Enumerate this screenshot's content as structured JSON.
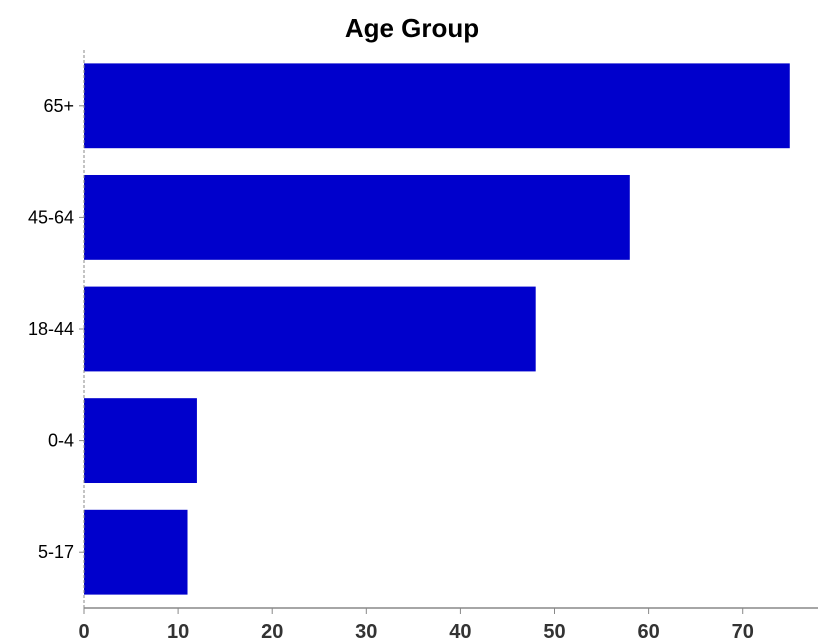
{
  "chart_data": {
    "type": "bar",
    "orientation": "horizontal",
    "title": "Age Group",
    "xlabel": "",
    "ylabel": "",
    "categories": [
      "65+",
      "45-64",
      "18-44",
      "0-4",
      "5-17"
    ],
    "values": [
      75,
      58,
      48,
      12,
      11
    ],
    "xlim": [
      0,
      78
    ],
    "x_ticks": [
      "0",
      "10",
      "20",
      "30",
      "40",
      "50",
      "60",
      "70"
    ],
    "grid": false,
    "legend": "none"
  },
  "colors": {
    "bar": "#0000CC",
    "axis": "#888888"
  }
}
